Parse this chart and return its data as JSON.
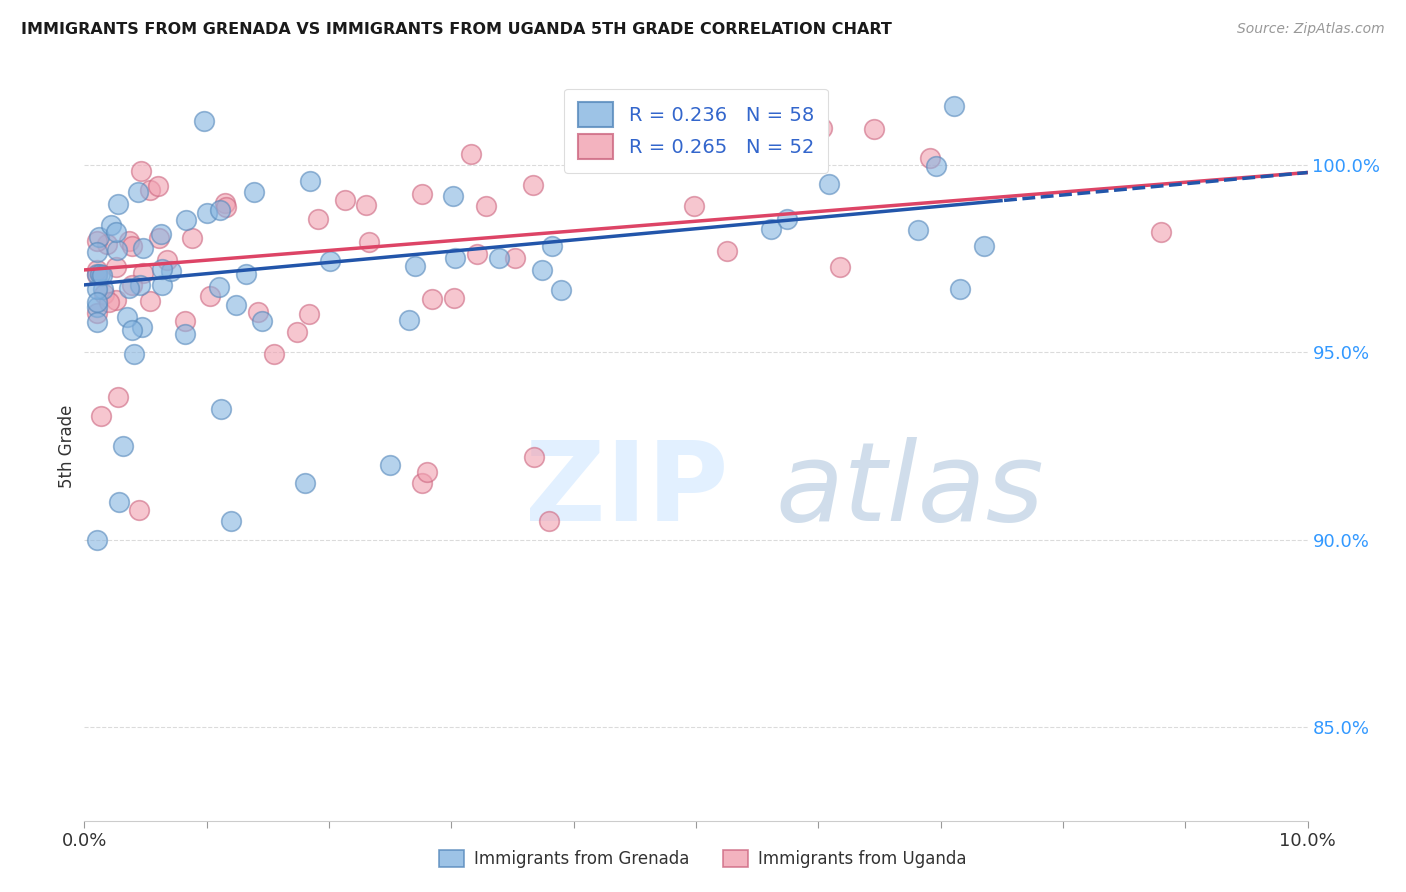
{
  "title": "IMMIGRANTS FROM GRENADA VS IMMIGRANTS FROM UGANDA 5TH GRADE CORRELATION CHART",
  "source": "Source: ZipAtlas.com",
  "ylabel": "5th Grade",
  "legend_blue_r": "R = 0.236",
  "legend_blue_n": "N = 58",
  "legend_pink_r": "R = 0.265",
  "legend_pink_n": "N = 52",
  "blue_color": "#85b4e0",
  "blue_edge": "#5588bb",
  "pink_color": "#f0a0b0",
  "pink_edge": "#cc6680",
  "trend_blue_color": "#2255aa",
  "trend_pink_color": "#dd4466",
  "legend_label_blue": "Immigrants from Grenada",
  "legend_label_pink": "Immigrants from Uganda",
  "xlim": [
    0.0,
    0.1
  ],
  "ylim": [
    82.5,
    102.5
  ],
  "ytick_positions": [
    85.0,
    90.0,
    95.0,
    100.0
  ],
  "ytick_labels": [
    "85.0%",
    "90.0%",
    "95.0%",
    "100.0%"
  ],
  "background_color": "#ffffff",
  "grid_color": "#cccccc",
  "blue_intercept": 96.8,
  "blue_slope": 30.0,
  "pink_intercept": 97.2,
  "pink_slope": 26.0
}
